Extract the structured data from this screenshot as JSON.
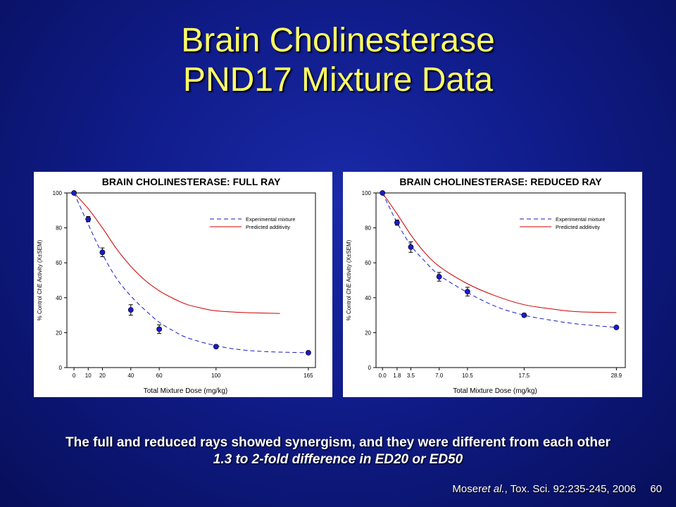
{
  "slide": {
    "title_line1": "Brain Cholinesterase",
    "title_line2": "PND17 Mixture Data",
    "caption_line1": "The full and reduced rays showed synergism, and they were different from each other",
    "caption_line2": "1.3 to 2-fold difference in ED20 or ED50",
    "citation_author": "Moser",
    "citation_etal": "et al.",
    "citation_rest": ", Tox. Sci. 92:235-245, 2006",
    "page_number": "60"
  },
  "colors": {
    "title": "#ffff66",
    "experimental": "#1a1acc",
    "predicted": "#cc0000",
    "marker": "#1a1acc"
  },
  "chart_data": [
    {
      "type": "line",
      "title": "BRAIN CHOLINESTERASE: FULL RAY",
      "xlabel": "Total Mixture Dose (mg/kg)",
      "ylabel": "% Control ChE Activity (X±SEM)",
      "xlim": [
        -5,
        170
      ],
      "ylim": [
        0,
        100
      ],
      "xticks": [
        0,
        10,
        20,
        40,
        60,
        100,
        165
      ],
      "xtick_labels": [
        "0",
        "10",
        "20",
        "40",
        "60",
        "100",
        "165"
      ],
      "yticks": [
        0,
        20,
        40,
        60,
        80,
        100
      ],
      "legend": {
        "position": "top-right",
        "entries": [
          "Experimental mixture",
          "Predicted additivity"
        ]
      },
      "points": {
        "name": "Experimental mixture",
        "x": [
          0,
          10,
          20,
          40,
          60,
          100,
          165
        ],
        "y": [
          100,
          85,
          66,
          33,
          22,
          12,
          8.5
        ],
        "err": [
          0,
          1.5,
          2.5,
          3,
          2.5,
          1,
          0.5
        ]
      },
      "series": [
        {
          "name": "Experimental mixture",
          "style": "dashed",
          "x": [
            0,
            10,
            20,
            30,
            40,
            50,
            60,
            70,
            80,
            100,
            120,
            140,
            165
          ],
          "y": [
            100,
            82,
            65,
            51,
            41,
            33,
            26,
            21,
            17,
            12.5,
            10,
            9,
            8.5
          ]
        },
        {
          "name": "Predicted additivity",
          "style": "solid",
          "x": [
            0,
            10,
            20,
            30,
            40,
            50,
            60,
            70,
            80,
            90,
            100,
            120,
            145
          ],
          "y": [
            100,
            91,
            80,
            68,
            58,
            50,
            44,
            39.5,
            36,
            34,
            32.5,
            31.5,
            31
          ]
        }
      ]
    },
    {
      "type": "line",
      "title": "BRAIN CHOLINESTERASE: REDUCED RAY",
      "xlabel": "Total Mixture Dose (mg/kg)",
      "ylabel": "% Control ChE Activity (X±SEM)",
      "xlim": [
        -0.8,
        30
      ],
      "ylim": [
        0,
        100
      ],
      "xticks": [
        0,
        1.8,
        3.5,
        7,
        10.5,
        17.5,
        28.9
      ],
      "xtick_labels": [
        "0.0",
        "1.8",
        "3.5",
        "7.0",
        "10.5",
        "17.5",
        "28.9"
      ],
      "yticks": [
        0,
        20,
        40,
        60,
        80,
        100
      ],
      "legend": {
        "position": "top-right",
        "entries": [
          "Experimental mixture",
          "Predicted additivity"
        ]
      },
      "points": {
        "name": "Experimental mixture",
        "x": [
          0,
          1.8,
          3.5,
          7,
          10.5,
          17.5,
          28.9
        ],
        "y": [
          100,
          83,
          69,
          52,
          43.5,
          30,
          23
        ],
        "err": [
          0,
          1.5,
          3,
          2.5,
          2.5,
          1,
          0.5
        ]
      },
      "series": [
        {
          "name": "Experimental mixture",
          "style": "dashed",
          "x": [
            0,
            1.8,
            3.5,
            5,
            7,
            10.5,
            14,
            17.5,
            21,
            24,
            28.9
          ],
          "y": [
            100,
            83,
            70,
            62,
            53,
            43,
            35,
            30,
            27,
            25,
            23
          ]
        },
        {
          "name": "Predicted additivity",
          "style": "solid",
          "x": [
            0,
            1.8,
            3.5,
            5,
            7,
            10.5,
            14,
            17.5,
            21,
            24,
            28.9
          ],
          "y": [
            100,
            88,
            76,
            67,
            58,
            48,
            41,
            36,
            33.5,
            32,
            31.5
          ]
        }
      ]
    }
  ]
}
